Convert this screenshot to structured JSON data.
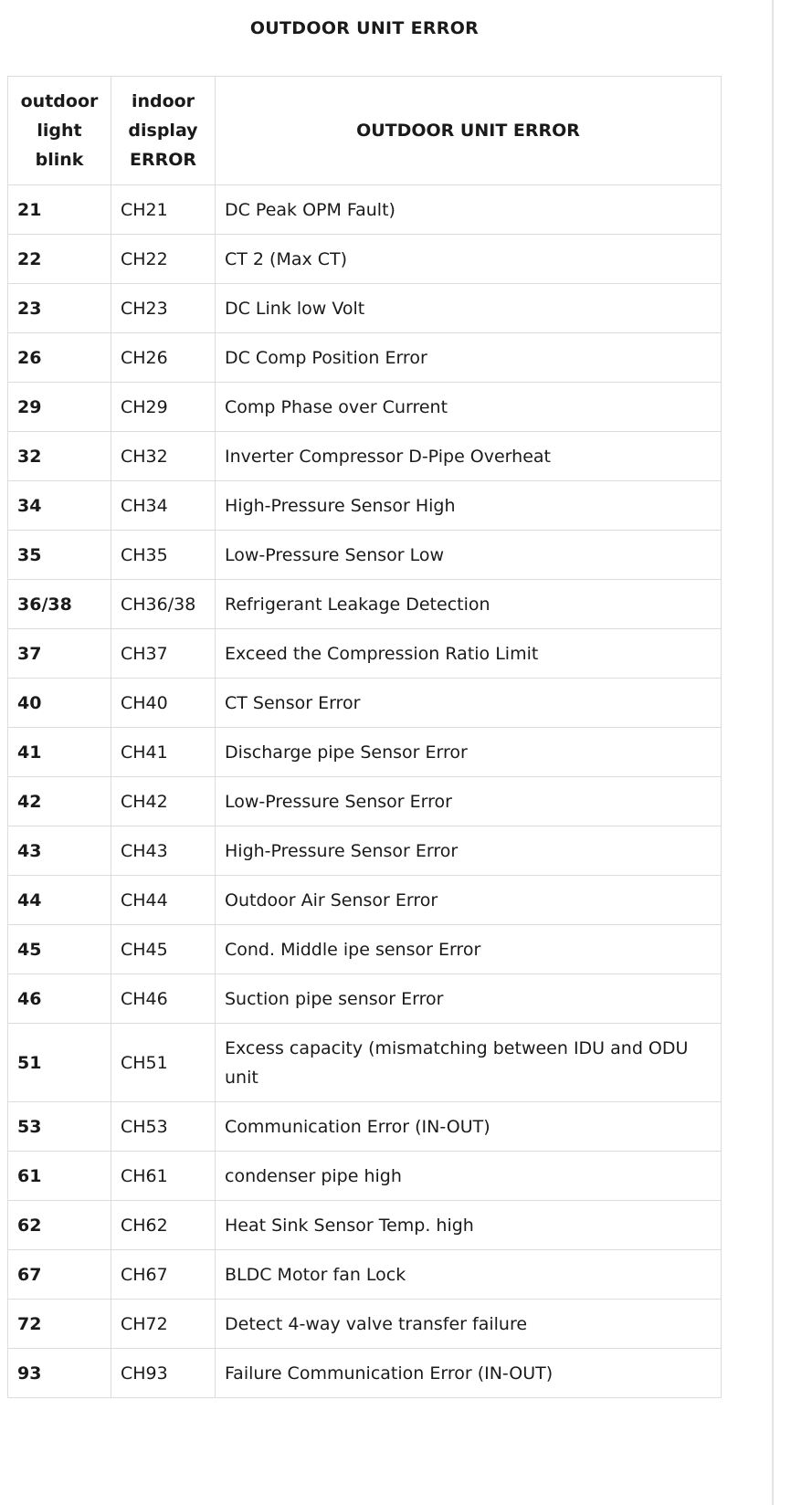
{
  "title": "OUTDOOR UNIT ERROR",
  "table": {
    "headers": [
      "outdoor light blink",
      "indoor display ERROR",
      "OUTDOOR UNIT ERROR"
    ],
    "rows": [
      [
        "21",
        "CH21",
        "DC Peak OPM Fault)"
      ],
      [
        "22",
        "CH22",
        "CT 2 (Max CT)"
      ],
      [
        "23",
        "CH23",
        "DC Link low Volt"
      ],
      [
        "26",
        "CH26",
        "DC Comp Position Error"
      ],
      [
        "29",
        "CH29",
        "Comp Phase over Current"
      ],
      [
        "32",
        "CH32",
        "Inverter Compressor D-Pipe  Overheat"
      ],
      [
        "34",
        "CH34",
        "High-Pressure Sensor High"
      ],
      [
        "35",
        "CH35",
        "Low-Pressure Sensor Low"
      ],
      [
        "36/38",
        "CH36/38",
        "Refrigerant Leakage Detection"
      ],
      [
        "37",
        "CH37",
        "Exceed the Compression Ratio Limit"
      ],
      [
        "40",
        "CH40",
        "CT Sensor Error"
      ],
      [
        "41",
        "CH41",
        "Discharge pipe Sensor Error"
      ],
      [
        "42",
        "CH42",
        "Low-Pressure Sensor Error"
      ],
      [
        "43",
        "CH43",
        "High-Pressure Sensor Error"
      ],
      [
        "44",
        "CH44",
        "Outdoor Air Sensor Error"
      ],
      [
        "45",
        "CH45",
        "Cond. Middle ipe sensor Error"
      ],
      [
        "46",
        "CH46",
        "Suction pipe sensor Error"
      ],
      [
        "51",
        "CH51",
        "Excess capacity (mismatching between IDU and ODU unit"
      ],
      [
        "53",
        "CH53",
        "Communication Error (IN-OUT)"
      ],
      [
        "61",
        "CH61",
        "condenser pipe high"
      ],
      [
        "62",
        "CH62",
        "Heat Sink Sensor Temp. high"
      ],
      [
        "67",
        "CH67",
        "BLDC Motor fan Lock"
      ],
      [
        "72",
        "CH72",
        "Detect 4-way valve transfer failure"
      ],
      [
        "93",
        "CH93",
        "Failure Communication Error (IN-OUT)"
      ]
    ]
  }
}
